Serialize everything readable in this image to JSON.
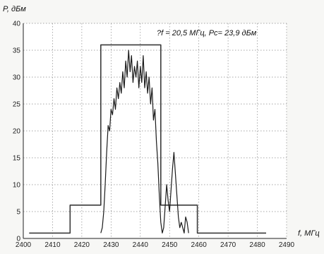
{
  "chart_data": {
    "type": "line",
    "ylabel": "P, дБм",
    "xlabel": "f, МГц",
    "annotation": "?f = 20,5 МГц, Pc= 23,9 дБм",
    "xlim": [
      2400,
      2490
    ],
    "ylim": [
      0,
      40
    ],
    "x_ticks": [
      2400,
      2410,
      2420,
      2430,
      2440,
      2450,
      2460,
      2470,
      2480,
      2490
    ],
    "y_ticks": [
      0,
      5,
      10,
      15,
      20,
      25,
      30,
      35,
      40
    ],
    "grid": true,
    "series": [
      {
        "role": "spectral mask",
        "x": [
          2402,
          2416,
          2416,
          2426.5,
          2426.5,
          2447,
          2447,
          2459.5,
          2459.5,
          2483
        ],
        "y": [
          1,
          1,
          6.2,
          6.2,
          36,
          36,
          6.2,
          6.2,
          1,
          1
        ]
      },
      {
        "role": "measured spectrum",
        "x": [
          2426.5,
          2427,
          2427.5,
          2428,
          2428.5,
          2429,
          2429.5,
          2430,
          2430.5,
          2431,
          2431.5,
          2432,
          2432.5,
          2433,
          2433.5,
          2434,
          2434.5,
          2435,
          2435.5,
          2436,
          2436.5,
          2437,
          2437.5,
          2438,
          2438.5,
          2439,
          2439.5,
          2440,
          2440.5,
          2441,
          2441.5,
          2442,
          2442.5,
          2443,
          2443.5,
          2444,
          2444.5,
          2445,
          2445.5,
          2446,
          2446.5,
          2447,
          2447.5,
          2448,
          2448.5,
          2449,
          2449.5,
          2450,
          2450.5,
          2451,
          2451.5,
          2452,
          2452.5,
          2453,
          2453.5,
          2454,
          2454.5,
          2455,
          2455.5,
          2456,
          2456.5
        ],
        "y": [
          1,
          2,
          5,
          10,
          16,
          21,
          20,
          24,
          23,
          26,
          24,
          28,
          26,
          29,
          27,
          31,
          28,
          33,
          30,
          35,
          31,
          34,
          29,
          32,
          30,
          33,
          28,
          32,
          29,
          34,
          28,
          31,
          27,
          30,
          25,
          28,
          22,
          24,
          18,
          14,
          8,
          3,
          1,
          2,
          6,
          10,
          7,
          5,
          9,
          13,
          16,
          12,
          8,
          4,
          2,
          3,
          2,
          1,
          4,
          3,
          1
        ]
      }
    ]
  }
}
